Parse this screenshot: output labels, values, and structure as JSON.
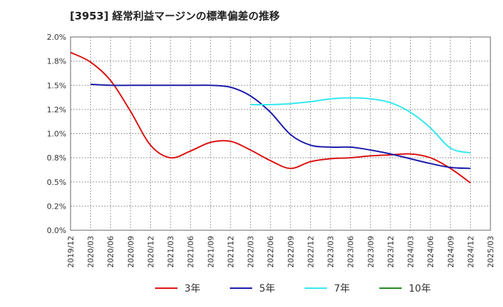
{
  "chart_data": {
    "type": "line",
    "title": "[3953]  経常利益マージンの標準偏差の推移",
    "xlabel": "",
    "ylabel": "",
    "x": [
      "2019/12",
      "2020/03",
      "2020/06",
      "2020/09",
      "2020/12",
      "2021/03",
      "2021/06",
      "2021/09",
      "2021/12",
      "2022/03",
      "2022/06",
      "2022/09",
      "2022/12",
      "2023/03",
      "2023/06",
      "2023/09",
      "2023/12",
      "2024/03",
      "2024/06",
      "2024/09",
      "2024/12",
      "2025/03"
    ],
    "yticks": [
      "0.0%",
      "0.2%",
      "0.5%",
      "0.8%",
      "1.0%",
      "1.2%",
      "1.5%",
      "1.8%",
      "2.0%"
    ],
    "ylim": [
      0,
      2.0
    ],
    "grid": true,
    "legend_position": "bottom",
    "series": [
      {
        "name": "3年",
        "color": "#dd1111",
        "values": [
          1.84,
          1.74,
          1.55,
          1.23,
          0.88,
          0.75,
          0.82,
          0.91,
          0.92,
          0.83,
          0.72,
          0.64,
          0.71,
          0.74,
          0.75,
          0.77,
          0.78,
          0.79,
          0.75,
          0.64,
          0.49,
          null
        ]
      },
      {
        "name": "5年",
        "color": "#1a1aaa",
        "values": [
          null,
          1.51,
          1.5,
          1.5,
          1.5,
          1.5,
          1.5,
          1.5,
          1.48,
          1.39,
          1.22,
          0.99,
          0.88,
          0.86,
          0.86,
          0.83,
          0.79,
          0.74,
          0.69,
          0.65,
          0.64,
          null
        ]
      },
      {
        "name": "7年",
        "color": "#33e8f0",
        "values": [
          null,
          null,
          null,
          null,
          null,
          null,
          null,
          null,
          null,
          1.3,
          1.3,
          1.31,
          1.33,
          1.36,
          1.37,
          1.36,
          1.32,
          1.22,
          1.06,
          0.85,
          0.8,
          null
        ]
      },
      {
        "name": "10年",
        "color": "#228822",
        "values": [
          null,
          null,
          null,
          null,
          null,
          null,
          null,
          null,
          null,
          null,
          null,
          null,
          null,
          null,
          null,
          null,
          null,
          null,
          null,
          null,
          null,
          null
        ]
      }
    ]
  }
}
